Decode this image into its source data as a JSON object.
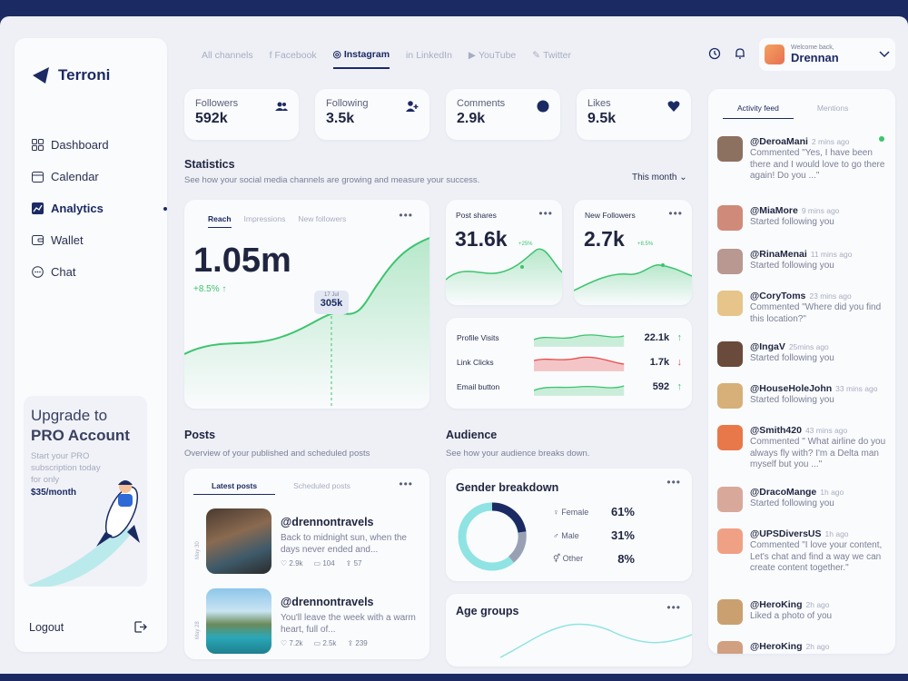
{
  "app": {
    "name": "Terroni"
  },
  "sidebar": {
    "items": [
      {
        "label": "Dashboard",
        "icon": "grid-icon"
      },
      {
        "label": "Calendar",
        "icon": "calendar-icon"
      },
      {
        "label": "Analytics",
        "icon": "chart-icon"
      },
      {
        "label": "Wallet",
        "icon": "wallet-icon"
      },
      {
        "label": "Chat",
        "icon": "chat-icon"
      }
    ],
    "active": "Analytics",
    "logout": "Logout"
  },
  "upgrade": {
    "line1": "Upgrade to",
    "line2": "PRO Account",
    "desc": "Start your PRO subscription today for only",
    "price": "$35/month"
  },
  "channels": [
    "All channels",
    "Facebook",
    "Instagram",
    "LinkedIn",
    "YouTube",
    "Twitter"
  ],
  "active_channel": "Instagram",
  "profile": {
    "welcome": "Welcome back,",
    "name": "Drennan"
  },
  "stats": [
    {
      "label": "Followers",
      "value": "592k"
    },
    {
      "label": "Following",
      "value": "3.5k"
    },
    {
      "label": "Comments",
      "value": "2.9k"
    },
    {
      "label": "Likes",
      "value": "9.5k"
    }
  ],
  "statistics": {
    "title": "Statistics",
    "subtitle": "See how your social media channels are growing and measure your success.",
    "period": "This month"
  },
  "reach": {
    "tabs": [
      "Reach",
      "Impressions",
      "New followers"
    ],
    "value": "1.05m",
    "change": "+8.5% ↑",
    "marker_date": "17 Jul",
    "marker_value": "305k"
  },
  "post_shares": {
    "label": "Post shares",
    "value": "31.6k",
    "badge": "+25%"
  },
  "new_followers": {
    "label": "New Followers",
    "value": "2.7k",
    "badge": "+8.5%"
  },
  "metrics": [
    {
      "label": "Profile Visits",
      "value": "22.1k",
      "dir": "up"
    },
    {
      "label": "Link Clicks",
      "value": "1.7k",
      "dir": "down"
    },
    {
      "label": "Email button",
      "value": "592",
      "dir": "up"
    }
  ],
  "posts": {
    "title": "Posts",
    "subtitle": "Overview of your published and scheduled posts",
    "tabs": [
      "Latest posts",
      "Scheduled posts"
    ],
    "items": [
      {
        "date": "May 30",
        "handle": "@drennontravels",
        "text": "Back to midnight sun, when the days never ended and...",
        "likes": "2.9k",
        "comments": "104",
        "shares": "57"
      },
      {
        "date": "May 28",
        "handle": "@drennontravels",
        "text": "You'll leave the week with a warm heart, full of...",
        "likes": "7.2k",
        "comments": "2.5k",
        "shares": "239"
      }
    ]
  },
  "audience": {
    "title": "Audience",
    "subtitle": "See how your audience breaks down.",
    "gender": {
      "title": "Gender breakdown",
      "rows": [
        {
          "label": "Female",
          "value": "61%"
        },
        {
          "label": "Male",
          "value": "31%"
        },
        {
          "label": "Other",
          "value": "8%"
        }
      ]
    },
    "age": {
      "title": "Age groups"
    }
  },
  "feed": {
    "tabs": [
      "Activity feed",
      "Mentions"
    ],
    "items": [
      {
        "user": "@DeroaMani",
        "time": "2 mins ago",
        "msg": "Commented \"Yes, I have been there and I would love to go there again! Do you ...\""
      },
      {
        "user": "@MiaMore",
        "time": "9 mins ago",
        "msg": "Started following you"
      },
      {
        "user": "@RinaMenai",
        "time": "11 mins ago",
        "msg": "Started following you"
      },
      {
        "user": "@CoryToms",
        "time": "23 mins ago",
        "msg": "Commented \"Where did you find this location?\""
      },
      {
        "user": "@IngaV",
        "time": "25mins ago",
        "msg": "Started following you"
      },
      {
        "user": "@HouseHoleJohn",
        "time": "33 mins ago",
        "msg": "Started following you"
      },
      {
        "user": "@Smith420",
        "time": "43 mins ago",
        "msg": "Commented \" What airline do you always fly with? I'm a Delta man myself but you ...\""
      },
      {
        "user": "@DracoMange",
        "time": "1h ago",
        "msg": "Started following you"
      },
      {
        "user": "@UPSDiversUS",
        "time": "1h ago",
        "msg": "Commented \"I love your content, Let's chat and find a way we can create content together.\""
      },
      {
        "user": "@HeroKing",
        "time": "2h ago",
        "msg": "Liked a photo of you"
      },
      {
        "user": "@HeroKing",
        "time": "2h ago",
        "msg": ""
      }
    ]
  },
  "colors": {
    "navy": "#1c2a63",
    "green": "#3cc46e",
    "red": "#e84a4a",
    "teal": "#8fe3e3"
  }
}
